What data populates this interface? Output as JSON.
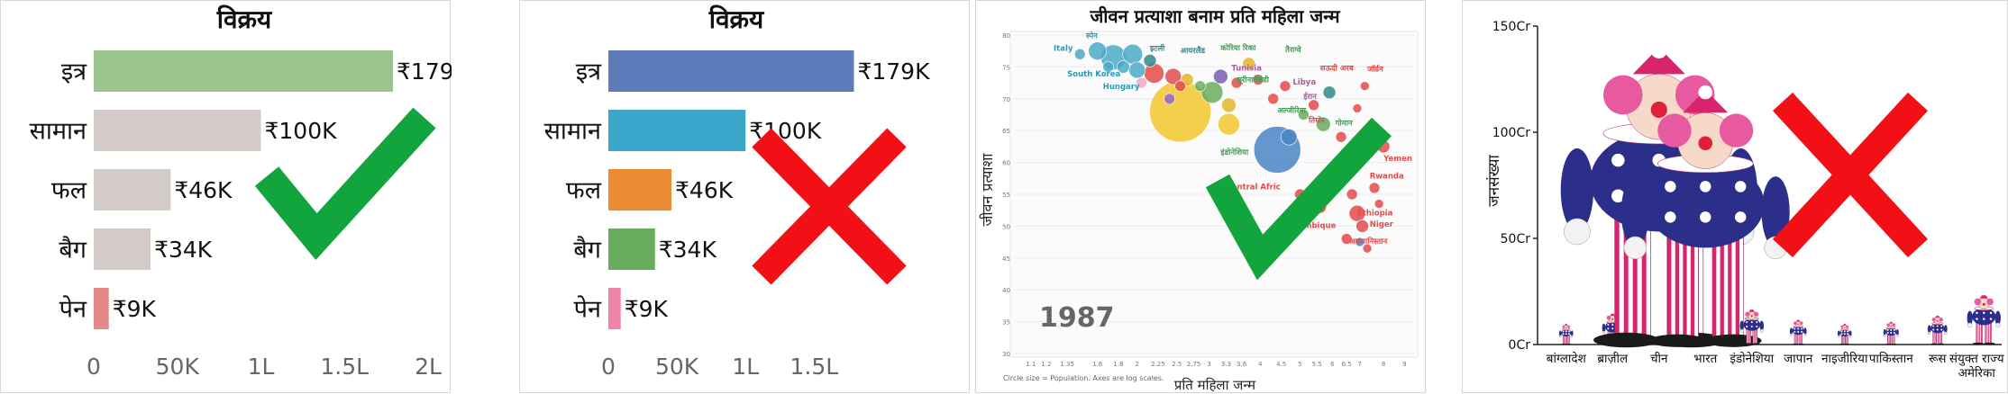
{
  "chart_data": [
    {
      "type": "bar",
      "orientation": "horizontal",
      "title": "विक्रय",
      "categories": [
        "इत्र",
        "सामान",
        "फल",
        "बैग",
        "पेन"
      ],
      "values": [
        179000,
        100000,
        46000,
        34000,
        9000
      ],
      "value_labels": [
        "₹179K",
        "₹100K",
        "₹46K",
        "₹34K",
        "₹9K"
      ],
      "xticks": [
        0,
        50000,
        100000,
        150000,
        200000
      ],
      "xtick_labels": [
        "0",
        "50K",
        "1L",
        "1.5L",
        "2L"
      ],
      "xlim": [
        0,
        200000
      ],
      "colors": [
        "#9dc58f",
        "#d2cbc8",
        "#d2cbc8",
        "#d2cbc8",
        "#e58888"
      ],
      "verdict": "check"
    },
    {
      "type": "bar",
      "orientation": "horizontal",
      "title": "विक्रय",
      "categories": [
        "इत्र",
        "सामान",
        "फल",
        "बैग",
        "पेन"
      ],
      "values": [
        179000,
        100000,
        46000,
        34000,
        9000
      ],
      "value_labels": [
        "₹179K",
        "₹100K",
        "₹46K",
        "₹34K",
        "₹9K"
      ],
      "xticks": [
        0,
        50000,
        100000,
        150000
      ],
      "xtick_labels": [
        "0",
        "50K",
        "1L",
        "1.5L"
      ],
      "xlim": [
        0,
        180000
      ],
      "colors": [
        "#5b7bb9",
        "#3aa6c9",
        "#ed8a34",
        "#68ad5c",
        "#ee84a6"
      ],
      "verdict": "cross"
    },
    {
      "type": "scatter",
      "title": "जीवन प्रत्याशा बनाम प्रति महिला जन्म",
      "xlabel": "प्रति महिला जन्म",
      "ylabel": "जीवन प्रत्याशा",
      "year": "1987",
      "note": "Circle size = Population.   Axes are log scales.",
      "x_scale": "log",
      "xlim": [
        1.0,
        9.5
      ],
      "ylim": [
        30,
        80
      ],
      "xticks": [
        1.1,
        1.2,
        1.35,
        1.6,
        1.8,
        2,
        2.25,
        2.5,
        2.75,
        3,
        3.3,
        3.6,
        4,
        4.5,
        5,
        5.5,
        6,
        6.5,
        7,
        8,
        9
      ],
      "yticks": [
        30,
        35,
        40,
        45,
        50,
        55,
        60,
        65,
        70,
        75,
        80
      ],
      "points": [
        {
          "x": 1.45,
          "y": 77,
          "r": 6,
          "color": "#4aa9c6"
        },
        {
          "x": 1.6,
          "y": 77.5,
          "r": 10,
          "color": "#4aa9c6"
        },
        {
          "x": 1.75,
          "y": 76.5,
          "r": 14,
          "color": "#4aa9c6"
        },
        {
          "x": 1.95,
          "y": 77,
          "r": 11,
          "color": "#4aa9c6"
        },
        {
          "x": 1.7,
          "y": 75,
          "r": 6,
          "color": "#4aa9c6"
        },
        {
          "x": 1.85,
          "y": 75,
          "r": 7,
          "color": "#4aa9c6"
        },
        {
          "x": 2.0,
          "y": 74.5,
          "r": 9,
          "color": "#4aa9c6"
        },
        {
          "x": 2.05,
          "y": 72.5,
          "r": 6,
          "color": "#f0a8c8"
        },
        {
          "x": 2.2,
          "y": 74,
          "r": 11,
          "color": "#e34a4a"
        },
        {
          "x": 2.45,
          "y": 73.5,
          "r": 9,
          "color": "#e34a4a"
        },
        {
          "x": 2.15,
          "y": 76,
          "r": 7,
          "color": "#2e8a8a"
        },
        {
          "x": 2.55,
          "y": 72,
          "r": 6,
          "color": "#e34a4a"
        },
        {
          "x": 2.4,
          "y": 70,
          "r": 6,
          "color": "#8d69c6"
        },
        {
          "x": 2.55,
          "y": 68,
          "r": 34,
          "color": "#f2c52e"
        },
        {
          "x": 2.65,
          "y": 73,
          "r": 7,
          "color": "#e0b62a"
        },
        {
          "x": 2.85,
          "y": 72,
          "r": 6,
          "color": "#68ad5c"
        },
        {
          "x": 3.05,
          "y": 71,
          "r": 12,
          "color": "#68ad5c"
        },
        {
          "x": 3.2,
          "y": 73.5,
          "r": 8,
          "color": "#7a5bb4"
        },
        {
          "x": 3.5,
          "y": 72.5,
          "r": 6,
          "color": "#e34a4a"
        },
        {
          "x": 3.35,
          "y": 69,
          "r": 8,
          "color": "#e0b62a"
        },
        {
          "x": 3.35,
          "y": 66,
          "r": 12,
          "color": "#f2c52e"
        },
        {
          "x": 3.75,
          "y": 75.5,
          "r": 7,
          "color": "#e0b62a"
        },
        {
          "x": 3.95,
          "y": 73,
          "r": 6,
          "color": "#e34a4a"
        },
        {
          "x": 4.3,
          "y": 70,
          "r": 6,
          "color": "#e34a4a"
        },
        {
          "x": 4.6,
          "y": 72,
          "r": 6,
          "color": "#e34a4a"
        },
        {
          "x": 4.4,
          "y": 62,
          "r": 26,
          "color": "#4a85c6"
        },
        {
          "x": 4.7,
          "y": 64,
          "r": 9,
          "color": "#4a85c6"
        },
        {
          "x": 5.1,
          "y": 67.5,
          "r": 6,
          "color": "#68ad5c"
        },
        {
          "x": 5.4,
          "y": 69,
          "r": 6,
          "color": "#e34a4a"
        },
        {
          "x": 5.9,
          "y": 71,
          "r": 7,
          "color": "#2e8a8a"
        },
        {
          "x": 5.7,
          "y": 66,
          "r": 8,
          "color": "#68ad5c"
        },
        {
          "x": 6.3,
          "y": 64,
          "r": 6,
          "color": "#e34a4a"
        },
        {
          "x": 5.0,
          "y": 55,
          "r": 6,
          "color": "#e34a4a"
        },
        {
          "x": 5.6,
          "y": 53,
          "r": 7,
          "color": "#e34a4a"
        },
        {
          "x": 6.0,
          "y": 57,
          "r": 6,
          "color": "#e34a4a"
        },
        {
          "x": 6.3,
          "y": 59,
          "r": 7,
          "color": "#e34a4a"
        },
        {
          "x": 6.7,
          "y": 55,
          "r": 6,
          "color": "#e34a4a"
        },
        {
          "x": 6.9,
          "y": 52,
          "r": 9,
          "color": "#e34a4a"
        },
        {
          "x": 7.1,
          "y": 50,
          "r": 7,
          "color": "#e34a4a"
        },
        {
          "x": 7.3,
          "y": 46.5,
          "r": 5,
          "color": "#e34a4a"
        },
        {
          "x": 7.6,
          "y": 56,
          "r": 6,
          "color": "#e34a4a"
        },
        {
          "x": 7.8,
          "y": 53.5,
          "r": 5,
          "color": "#e34a4a"
        },
        {
          "x": 6.5,
          "y": 48,
          "r": 6,
          "color": "#e34a4a"
        },
        {
          "x": 7.0,
          "y": 47.5,
          "r": 5,
          "color": "#4a85c6"
        },
        {
          "x": 8.0,
          "y": 62.5,
          "r": 7,
          "color": "#e34a4a"
        },
        {
          "x": 6.9,
          "y": 68.5,
          "r": 5,
          "color": "#e34a4a"
        },
        {
          "x": 7.2,
          "y": 72,
          "r": 5,
          "color": "#e34a4a"
        }
      ],
      "annotations": [
        {
          "text": "स्पेन",
          "x": 1.5,
          "y": 79.5,
          "color": "#2a9ab8"
        },
        {
          "text": "Italy",
          "x": 1.25,
          "y": 77.5,
          "color": "#2a9ab8"
        },
        {
          "text": "South Korea",
          "x": 1.35,
          "y": 73.5,
          "color": "#2a9ab8"
        },
        {
          "text": "Hungary",
          "x": 1.65,
          "y": 71.5,
          "color": "#2a9ab8"
        },
        {
          "text": "इटली",
          "x": 2.15,
          "y": 77.5,
          "color": "#2e8a8a"
        },
        {
          "text": "आयरलैंड",
          "x": 2.55,
          "y": 77.2,
          "color": "#2e8a8a"
        },
        {
          "text": "कोरिया रिका",
          "x": 3.2,
          "y": 77.6,
          "color": "#4a9a5a"
        },
        {
          "text": "Tunisia",
          "x": 3.4,
          "y": 74.4,
          "color": "#b0569c"
        },
        {
          "text": "तैराग्वे",
          "x": 4.6,
          "y": 77.3,
          "color": "#4a9a5a"
        },
        {
          "text": "सऊदी अरब",
          "x": 5.6,
          "y": 74.4,
          "color": "#e34a4a"
        },
        {
          "text": "सूरीनामेलेडी",
          "x": 3.5,
          "y": 72.6,
          "color": "#4a9a5a"
        },
        {
          "text": "Libya",
          "x": 4.8,
          "y": 72.2,
          "color": "#b0569c"
        },
        {
          "text": "ईरान",
          "x": 5.1,
          "y": 70.0,
          "color": "#b0569c"
        },
        {
          "text": "अल्जीरिया",
          "x": 4.4,
          "y": 67.8,
          "color": "#4a9a5a"
        },
        {
          "text": "तिमोर",
          "x": 5.25,
          "y": 66.2,
          "color": "#e34a4a"
        },
        {
          "text": "इंडोनेशिया",
          "x": 3.2,
          "y": 61.2,
          "color": "#4a9a5a"
        },
        {
          "text": "Yemen",
          "x": 8.0,
          "y": 60.2,
          "color": "#e34a4a"
        },
        {
          "text": "Rwanda",
          "x": 7.4,
          "y": 57.5,
          "color": "#e34a4a"
        },
        {
          "text": "Central Afric",
          "x": 3.3,
          "y": 55.8,
          "color": "#e34a4a"
        },
        {
          "text": "Ethiopia",
          "x": 6.9,
          "y": 51.7,
          "color": "#e34a4a"
        },
        {
          "text": "Mozambique",
          "x": 4.5,
          "y": 49.7,
          "color": "#e34a4a"
        },
        {
          "text": "Niger",
          "x": 7.4,
          "y": 49.9,
          "color": "#e34a4a"
        },
        {
          "text": "अफ़गानिस्तान",
          "x": 6.6,
          "y": 47.2,
          "color": "#e34a4a"
        },
        {
          "text": "गोमान",
          "x": 6.1,
          "y": 65.8,
          "color": "#4a9a5a"
        },
        {
          "text": "जॉर्डन",
          "x": 7.3,
          "y": 74.3,
          "color": "#e34a4a"
        }
      ],
      "verdict": "check"
    },
    {
      "type": "bar",
      "orientation": "vertical",
      "pictograph": "clown",
      "ylabel": "जनसंख्या",
      "categories": [
        "बांग्लादेश",
        "ब्राज़ील",
        "चीन",
        "भारत",
        "इंडोनेशिया",
        "जापान",
        "नाइजीरिया",
        "पाकिस्तान",
        "रूस",
        "संयुक्त राज्य अमेरिका"
      ],
      "values": [
        10,
        15,
        140,
        120,
        17,
        12,
        10,
        11,
        14,
        24
      ],
      "yticks": [
        0,
        50,
        100,
        150
      ],
      "ytick_labels": [
        "0Cr",
        "50Cr",
        "100Cr",
        "150Cr"
      ],
      "ylim": [
        0,
        150
      ],
      "verdict": "cross"
    }
  ],
  "verdict_colors": {
    "check": "#12a53e",
    "cross": "#f20f16"
  }
}
